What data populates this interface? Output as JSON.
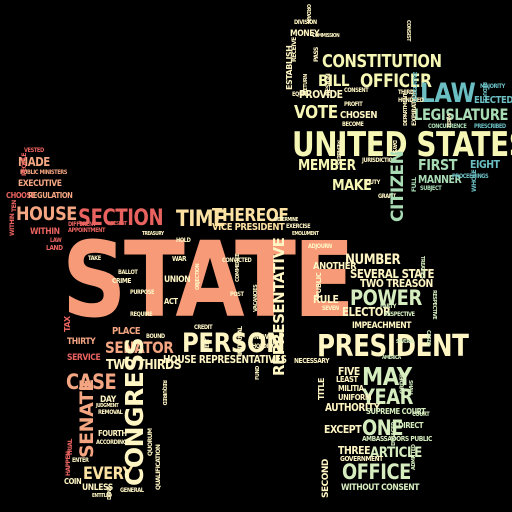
{
  "colors": {
    "background": "#000000",
    "coral": "#f79a77",
    "salmon": "#f4a582",
    "red": "#e8625f",
    "pink": "#f4b8a0",
    "cream": "#fff6c4",
    "yellow": "#f6f7b5",
    "lightgreen": "#d6eebf",
    "green": "#a9dcb5",
    "teal": "#6bbfc3",
    "blue": "#4fa0c8",
    "grey": "#cfcfcf"
  },
  "words": {
    "state": "STATE",
    "united_states": "UNITED STATES",
    "president": "PRESIDENT",
    "person": "PERSON",
    "congress": "CONGRESS",
    "section": "SECTION",
    "time": "TIME",
    "thereof": "THEREOF",
    "house": "HOUSE",
    "case": "CASE",
    "senate": "SENATE",
    "senator": "SENATOR",
    "every": "EVERY",
    "constitution": "CONSTITUTION",
    "officer": "OFFICER",
    "law": "LAW",
    "legislature": "LEGISLATURE",
    "vote": "VOTE",
    "bill": "BILL",
    "member": "MEMBER",
    "make": "MAKE",
    "citizen": "CITIZEN",
    "first": "FIRST",
    "eight": "EIGHT",
    "power": "POWER",
    "may": "MAY",
    "year": "YEAR",
    "one": "ONE",
    "office": "OFFICE",
    "article": "ARTICLE",
    "authority": "AUTHORITY",
    "except": "EXCEPT",
    "three": "THREE",
    "representative": "REPRESENTATIVE",
    "house_representatives": "HOUSE REPRESENTATIVES",
    "two_thirds": "TWO THIRDS",
    "made": "MADE",
    "executive": "EXECUTIVE",
    "within": "WITHIN",
    "number": "NUMBER",
    "several_state": "SEVERAL STATE",
    "two_treason": "TWO TREASON",
    "elector": "ELECTOR",
    "impeachment": "IMPEACHMENT",
    "necessary": "NECESSARY",
    "vice_president": "VICE PRESIDENT",
    "money": "MONEY",
    "provide": "PROVIDE",
    "chosen": "CHOSEN",
    "elected": "ELECTED",
    "manner": "MANNER",
    "five": "FIVE",
    "rule": "RULE",
    "another": "ANOTHER",
    "without_consent": "WITHOUT CONSENT",
    "second": "SECOND",
    "choose": "CHOOSE",
    "regulation": "REGULATION",
    "within_small": "WITHIN",
    "public_ministers": "PUBLIC MINISTERS",
    "union": "UNION",
    "crime": "CRIME",
    "place": "PLACE",
    "thirty": "THIRTY",
    "service": "SERVICE",
    "day": "DAY",
    "fourth": "FOURTH",
    "unless": "UNLESS",
    "coin": "COIN",
    "hold": "HOLD",
    "trial": "TRIAL",
    "credit": "CREDIT",
    "post": "POST",
    "new": "NEW",
    "militia": "MILITIA",
    "uniform": "UNIFORM",
    "direct": "DIRECT",
    "supreme_court": "SUPREME COURT",
    "ambassadors_public": "AMBASSADORS PUBLIC",
    "government": "GOVERNMENT",
    "general": "GENERAL",
    "least": "LEAST",
    "title": "TITLE",
    "public": "PUBLIC",
    "grant": "GRANT",
    "respective": "RESPECTIVE",
    "party": "PARTY",
    "seven": "SEVEN",
    "several": "SEVERAL",
    "jurisdiction": "JURISDICTION",
    "duty": "DUTY",
    "full": "FULL",
    "subject": "SUBJECT",
    "proceedings": "PROCEEDINGS",
    "whole": "WHOLE",
    "concurrence": "CONCURRENCE",
    "prescribed": "PRESCRIBED",
    "third": "THIRD",
    "hundred": "HUNDRED",
    "emolument": "EMOLUMENT",
    "majority": "MAJORITY",
    "profit": "PROFIT",
    "consent": "CONSENT",
    "become": "BECOME",
    "division": "DIVISION",
    "commission": "COMMISSION",
    "resign": "RESIGN",
    "department": "DEPARTMENT",
    "equal": "EQUAL",
    "treasury": "TREASURY",
    "determine": "DETERMINE",
    "exercise": "EXERCISE",
    "adjourn": "ADJOURN",
    "according": "ACCORDING",
    "court": "COURT",
    "tax": "TAX",
    "war": "WAR",
    "take": "TAKE",
    "ballot": "BALLOT",
    "act": "ACT",
    "purpose": "PURPOSE",
    "require": "REQUIRE",
    "law_small": "LAW",
    "land": "LAND",
    "vested": "VESTED",
    "removal": "REMOVAL",
    "judgment": "JUDGMENT",
    "entitled": "ENTITLED",
    "happen": "HAPPEN",
    "enter": "ENTER",
    "member_small": "MEMBERS",
    "america": "AMERICA",
    "treaties": "TREATIES",
    "case_small": "CASES",
    "people": "PEOPLE",
    "quorum": "QUORUM",
    "appointment": "APPOINTMENT",
    "different": "DIFFERENT",
    "present": "PRESENT",
    "qualification": "QUALIFICATION",
    "vacancies": "VACANCIES",
    "bound": "BOUND",
    "convicted": "CONVICTED",
    "holding": "HOLDING",
    "internal": "INTERNAL",
    "engaged": "ENGAGED",
    "order": "ORDER",
    "admitted": "ADMITTED",
    "objection": "OBJECTION",
    "shall": "SHALL",
    "term": "TERM",
    "establish": "ESTABLISH",
    "expiration": "EXPIRATION",
    "require_small": "REQUIRED",
    "return": "RETURN",
    "pass": "PASS",
    "receive": "RECEIVE",
    "consist": "CONSIST",
    "ordain": "ORDAIN",
    "days": "DAYS",
    "meet": "MEET",
    "commerce": "COMMERCE",
    "reduce": "REDUCE",
    "respective_small": "RESPECTIVE",
    "legislative": "LEGISLATIVE",
    "fund": "FUND",
    "deny": "DENY",
    "ten": "TEN"
  }
}
